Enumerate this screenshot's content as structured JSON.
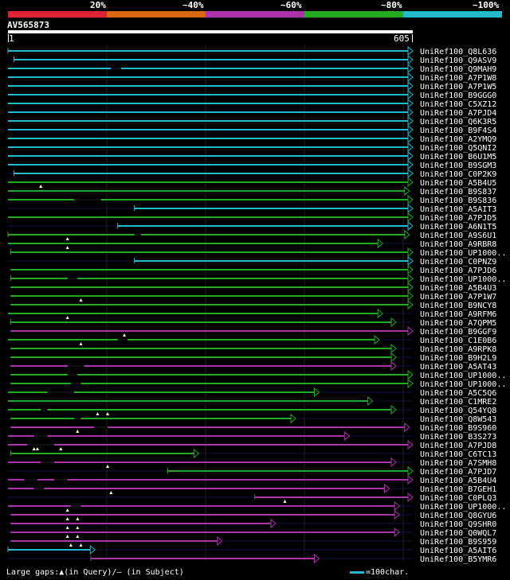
{
  "colors": {
    "background": "#000000",
    "cyan": "#22bbcc",
    "green": "#22aa22",
    "magenta": "#aa33aa",
    "red": "#dd2233",
    "orange": "#dd6611",
    "gap": "#101040",
    "grid": "#222222"
  },
  "scale": {
    "labels": [
      "20%",
      "~40%",
      "~60%",
      "~80%",
      "~100%"
    ],
    "segment_colors": [
      "#dd2233",
      "#dd6611",
      "#aa33aa",
      "#22aa22",
      "#22bbcc"
    ]
  },
  "query": {
    "name": "AV565873",
    "start": "1",
    "end": "605"
  },
  "hits": [
    {
      "label": "UniRef100_Q8L636",
      "color": "cyan",
      "s": 1,
      "e": 605,
      "startTick": true
    },
    {
      "label": "UniRef100_Q9ASV9",
      "color": "cyan",
      "s": 10,
      "e": 605,
      "startTick": true
    },
    {
      "label": "UniRef100_Q9MAH9",
      "color": "cyan",
      "s": 1,
      "e": 605,
      "gaps": [
        [
          155,
          170
        ]
      ]
    },
    {
      "label": "UniRef100_A7P1W8",
      "color": "cyan",
      "s": 1,
      "e": 605
    },
    {
      "label": "UniRef100_A7P1W5",
      "color": "cyan",
      "s": 1,
      "e": 605
    },
    {
      "label": "UniRef100_B9GGG0",
      "color": "cyan",
      "s": 1,
      "e": 605
    },
    {
      "label": "UniRef100_C5XZ12",
      "color": "cyan",
      "s": 1,
      "e": 605
    },
    {
      "label": "UniRef100_A7PJD4",
      "color": "cyan",
      "s": 1,
      "e": 605
    },
    {
      "label": "UniRef100_Q6K3R5",
      "color": "cyan",
      "s": 1,
      "e": 605
    },
    {
      "label": "UniRef100_B9F4S4",
      "color": "cyan",
      "s": 1,
      "e": 605
    },
    {
      "label": "UniRef100_A2YMQ9",
      "color": "cyan",
      "s": 1,
      "e": 605
    },
    {
      "label": "UniRef100_Q5QNI2",
      "color": "cyan",
      "s": 1,
      "e": 605
    },
    {
      "label": "UniRef100_B6U1M5",
      "color": "cyan",
      "s": 1,
      "e": 605
    },
    {
      "label": "UniRef100_B9SGM3",
      "color": "cyan",
      "s": 1,
      "e": 605
    },
    {
      "label": "UniRef100_C0P2K9",
      "color": "cyan",
      "s": 10,
      "e": 605,
      "startTick": true
    },
    {
      "label": "UniRef100_A5B4U5",
      "color": "green",
      "s": 1,
      "e": 605,
      "marks": [
        50
      ]
    },
    {
      "label": "UniRef100_B9S837",
      "color": "green",
      "s": 1,
      "e": 600
    },
    {
      "label": "UniRef100_B9S836",
      "color": "green",
      "s": 1,
      "e": 605,
      "gaps": [
        [
          100,
          140
        ]
      ]
    },
    {
      "label": "UniRef100_A5AIT3",
      "color": "cyan",
      "s": 190,
      "e": 605,
      "startTick": true
    },
    {
      "label": "UniRef100_A7PJD5",
      "color": "green",
      "s": 1,
      "e": 605
    },
    {
      "label": "UniRef100_A6N1T5",
      "color": "cyan",
      "s": 165,
      "e": 605,
      "startTick": true
    },
    {
      "label": "UniRef100_A9S6U1",
      "color": "green",
      "s": 1,
      "e": 600,
      "startTick": true,
      "marks": [
        90
      ],
      "gaps": [
        [
          190,
          200
        ]
      ]
    },
    {
      "label": "UniRef100_A9RBR8",
      "color": "green",
      "s": 1,
      "e": 560,
      "marks": [
        90
      ]
    },
    {
      "label": "UniRef100_UP1000..",
      "color": "green",
      "s": 5,
      "e": 605,
      "startTick": true
    },
    {
      "label": "UniRef100_C0PNZ9",
      "color": "cyan",
      "s": 190,
      "e": 605,
      "startTick": true
    },
    {
      "label": "UniRef100_A7PJD6",
      "color": "green",
      "s": 5,
      "e": 605
    },
    {
      "label": "UniRef100_UP1000..",
      "color": "green",
      "s": 5,
      "e": 605,
      "startTick": true,
      "gaps": [
        [
          90,
          105
        ]
      ]
    },
    {
      "label": "UniRef100_A5B4U3",
      "color": "green",
      "s": 5,
      "e": 605
    },
    {
      "label": "UniRef100_A7P1W7",
      "color": "green",
      "s": 5,
      "e": 605,
      "marks": [
        110
      ]
    },
    {
      "label": "UniRef100_B9NCY8",
      "color": "green",
      "s": 5,
      "e": 605
    },
    {
      "label": "UniRef100_A9RFM6",
      "color": "green",
      "s": 1,
      "e": 560,
      "marks": [
        90
      ]
    },
    {
      "label": "UniRef100_A7QPM5",
      "color": "green",
      "s": 5,
      "e": 580,
      "startTick": true
    },
    {
      "label": "UniRef100_B9GGF9",
      "color": "magenta",
      "s": 5,
      "e": 605,
      "marks": [
        175
      ]
    },
    {
      "label": "UniRef100_C1E0B6",
      "color": "green",
      "s": 1,
      "e": 555,
      "marks": [
        110
      ],
      "gaps": [
        [
          165,
          180
        ]
      ]
    },
    {
      "label": "UniRef100_A9RPK8",
      "color": "green",
      "s": 5,
      "e": 580
    },
    {
      "label": "UniRef100_B9H2L9",
      "color": "green",
      "s": 5,
      "e": 580
    },
    {
      "label": "UniRef100_A5AT43",
      "color": "magenta",
      "s": 5,
      "e": 580,
      "gaps": [
        [
          90,
          115
        ]
      ]
    },
    {
      "label": "UniRef100_UP1000..",
      "color": "green",
      "s": 5,
      "e": 605,
      "gaps": [
        [
          90,
          105
        ]
      ]
    },
    {
      "label": "UniRef100_UP1000..",
      "color": "green",
      "s": 5,
      "e": 605,
      "gaps": [
        [
          95,
          110
        ]
      ]
    },
    {
      "label": "UniRef100_A5C5Q6",
      "color": "green",
      "s": 1,
      "e": 465,
      "gaps": [
        [
          60,
          100
        ]
      ]
    },
    {
      "label": "UniRef100_C1MRE2",
      "color": "green",
      "s": 1,
      "e": 545
    },
    {
      "label": "UniRef100_Q54YQ8",
      "color": "green",
      "s": 1,
      "e": 580,
      "marks": [
        135,
        150
      ],
      "gaps": [
        [
          50,
          60
        ]
      ]
    },
    {
      "label": "UniRef100_Q8W543",
      "color": "green",
      "s": 5,
      "e": 430,
      "gaps": [
        [
          100,
          110
        ]
      ]
    },
    {
      "label": "UniRef100_B9S960",
      "color": "magenta",
      "s": 5,
      "e": 600,
      "marks": [
        105
      ],
      "gaps": [
        [
          130,
          150
        ]
      ]
    },
    {
      "label": "UniRef100_B3S273",
      "color": "magenta",
      "s": 1,
      "e": 510,
      "gaps": [
        [
          40,
          60
        ]
      ]
    },
    {
      "label": "UniRef100_A7PJD8",
      "color": "magenta",
      "s": 1,
      "e": 605,
      "marks": [
        40,
        45,
        80
      ],
      "gaps": [
        [
          30,
          70
        ]
      ]
    },
    {
      "label": "UniRef100_C6TC13",
      "color": "green",
      "s": 5,
      "e": 285,
      "startTick": true
    },
    {
      "label": "UniRef100_A7SMH8",
      "color": "magenta",
      "s": 1,
      "e": 580,
      "marks": [
        150
      ],
      "gaps": [
        [
          50,
          70
        ]
      ]
    },
    {
      "label": "UniRef100_A7PJD7",
      "color": "green",
      "s": 240,
      "e": 605,
      "startTick": true
    },
    {
      "label": "UniRef100_A5B4U4",
      "color": "magenta",
      "s": 1,
      "e": 605,
      "gaps": [
        [
          25,
          45
        ],
        [
          70,
          90
        ]
      ]
    },
    {
      "label": "UniRef100_B7GEH1",
      "color": "magenta",
      "s": 1,
      "e": 570,
      "marks": [
        155
      ],
      "gaps": [
        [
          40,
          55
        ]
      ]
    },
    {
      "label": "UniRef100_C0PLQ3",
      "color": "magenta",
      "s": 370,
      "e": 605,
      "marks": [
        415
      ],
      "startTick": true
    },
    {
      "label": "UniRef100_UP1000..",
      "color": "magenta",
      "s": 1,
      "e": 585,
      "marks": [
        90
      ],
      "gaps": [
        [
          95,
          110
        ]
      ]
    },
    {
      "label": "UniRef100_Q8GYU6",
      "color": "magenta",
      "s": 5,
      "e": 585,
      "marks": [
        90,
        105
      ]
    },
    {
      "label": "UniRef100_Q9SHR0",
      "color": "magenta",
      "s": 5,
      "e": 400,
      "marks": [
        90,
        105
      ]
    },
    {
      "label": "UniRef100_Q0WQL7",
      "color": "magenta",
      "s": 5,
      "e": 585,
      "marks": [
        90,
        105
      ]
    },
    {
      "label": "UniRef100_B9S959",
      "color": "magenta",
      "s": 5,
      "e": 320,
      "marks": [
        95,
        110
      ]
    },
    {
      "label": "UniRef100_A5AIT6",
      "color": "cyan",
      "s": 1,
      "e": 130,
      "startTick": true
    },
    {
      "label": "UniRef100_B5YMR6",
      "color": "magenta",
      "s": 125,
      "e": 465,
      "startTick": true
    }
  ],
  "footer": {
    "text": "Large gaps:▲(in Query)/— (in Subject)",
    "scale_text": "=100char."
  }
}
